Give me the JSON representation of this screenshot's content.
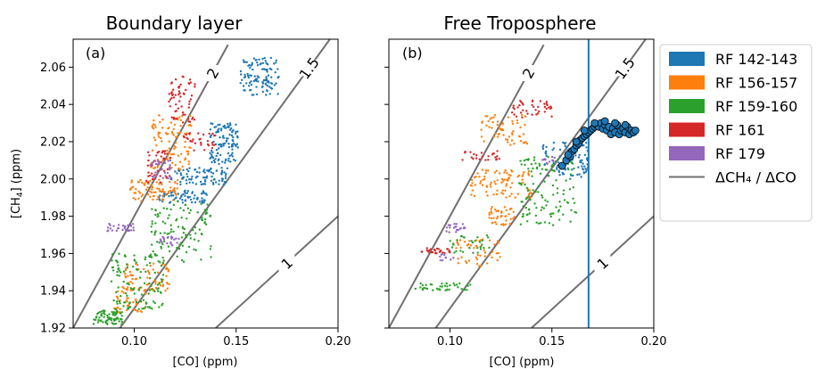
{
  "chart_data": [
    {
      "type": "scatter",
      "title": "Boundary layer",
      "panel_label": "(a)",
      "xlabel": "[CO] (ppm)",
      "ylabel": "[CH",
      "ylabel_sub": "4",
      "ylabel_tail": "] (ppm)",
      "xlim": [
        0.07,
        0.2
      ],
      "ylim": [
        1.92,
        2.075
      ],
      "xticks": [
        0.1,
        0.15,
        0.2
      ],
      "xtick_labels": [
        "0.10",
        "0.15",
        "0.20"
      ],
      "yticks": [
        1.92,
        1.94,
        1.96,
        1.98,
        2.0,
        2.02,
        2.04,
        2.06
      ],
      "ytick_labels": [
        "1.92",
        "1.94",
        "1.96",
        "1.98",
        "2.00",
        "2.02",
        "2.04",
        "2.06"
      ],
      "ratio_lines": [
        {
          "slope": 2,
          "label": "2",
          "x0": 0.07,
          "y0": 1.92,
          "x1": 0.146,
          "y1": 2.072
        },
        {
          "slope": 1.5,
          "label": "1.5",
          "x0": 0.093,
          "y0": 1.92,
          "x1": 0.196,
          "y1": 2.075
        },
        {
          "slope": 1,
          "label": "1",
          "x0": 0.14,
          "y0": 1.92,
          "x1": 0.2,
          "y1": 1.98
        }
      ],
      "clusters": [
        {
          "series": "RF 142-143",
          "x": [
            0.152,
            0.171
          ],
          "y": [
            2.045,
            2.065
          ],
          "n": 110
        },
        {
          "series": "RF 142-143",
          "x": [
            0.137,
            0.151
          ],
          "y": [
            2.008,
            2.03
          ],
          "n": 110
        },
        {
          "series": "RF 142-143",
          "x": [
            0.118,
            0.146
          ],
          "y": [
            1.997,
            2.006
          ],
          "n": 90
        },
        {
          "series": "RF 142-143",
          "x": [
            0.112,
            0.136
          ],
          "y": [
            1.987,
            1.994
          ],
          "n": 70
        },
        {
          "series": "RF 156-157",
          "x": [
            0.108,
            0.128
          ],
          "y": [
            2.005,
            2.035
          ],
          "n": 100
        },
        {
          "series": "RF 156-157",
          "x": [
            0.098,
            0.122
          ],
          "y": [
            1.988,
            2.0
          ],
          "n": 80
        },
        {
          "series": "RF 156-157",
          "x": [
            0.095,
            0.118
          ],
          "y": [
            1.94,
            1.955
          ],
          "n": 70
        },
        {
          "series": "RF 156-157",
          "x": [
            0.09,
            0.106
          ],
          "y": [
            1.928,
            1.942
          ],
          "n": 50
        },
        {
          "series": "RF 159-160",
          "x": [
            0.08,
            0.094
          ],
          "y": [
            1.922,
            1.93
          ],
          "n": 80
        },
        {
          "series": "RF 159-160",
          "x": [
            0.088,
            0.115
          ],
          "y": [
            1.93,
            1.96
          ],
          "n": 120
        },
        {
          "series": "RF 159-160",
          "x": [
            0.108,
            0.138
          ],
          "y": [
            1.955,
            1.988
          ],
          "n": 110
        },
        {
          "series": "RF 161",
          "x": [
            0.117,
            0.13
          ],
          "y": [
            2.03,
            2.055
          ],
          "n": 60
        },
        {
          "series": "RF 161",
          "x": [
            0.106,
            0.118
          ],
          "y": [
            1.998,
            2.015
          ],
          "n": 40
        },
        {
          "series": "RF 161",
          "x": [
            0.124,
            0.14
          ],
          "y": [
            2.015,
            2.025
          ],
          "n": 30
        },
        {
          "series": "RF 179",
          "x": [
            0.086,
            0.1
          ],
          "y": [
            1.972,
            1.976
          ],
          "n": 30
        },
        {
          "series": "RF 179",
          "x": [
            0.108,
            0.118
          ],
          "y": [
            2.0,
            2.01
          ],
          "n": 30
        },
        {
          "series": "RF 179",
          "x": [
            0.112,
            0.124
          ],
          "y": [
            1.964,
            1.969
          ],
          "n": 20
        }
      ]
    },
    {
      "type": "scatter",
      "title": "Free Troposphere",
      "panel_label": "(b)",
      "xlabel": "[CO] (ppm)",
      "xlim": [
        0.07,
        0.2
      ],
      "ylim": [
        1.92,
        2.075
      ],
      "xticks": [
        0.1,
        0.15,
        0.2
      ],
      "xtick_labels": [
        "0.10",
        "0.15",
        "0.20"
      ],
      "yticks": [
        1.92,
        1.94,
        1.96,
        1.98,
        2.0,
        2.02,
        2.04,
        2.06
      ],
      "vertical_line_x": 0.168,
      "ratio_lines": [
        {
          "slope": 2,
          "label": "2",
          "x0": 0.07,
          "y0": 1.92,
          "x1": 0.146,
          "y1": 2.072
        },
        {
          "slope": 1.5,
          "label": "1.5",
          "x0": 0.093,
          "y0": 1.92,
          "x1": 0.196,
          "y1": 2.075
        },
        {
          "series_note": "",
          "slope": 1,
          "label": "1",
          "x0": 0.14,
          "y0": 1.92,
          "x1": 0.2,
          "y1": 1.98
        }
      ],
      "clusters": [
        {
          "series": "RF 142-143",
          "x": [
            0.145,
            0.168
          ],
          "y": [
            2.0,
            2.02
          ],
          "n": 90
        },
        {
          "series": "RF 156-157",
          "x": [
            0.115,
            0.138
          ],
          "y": [
            2.018,
            2.035
          ],
          "n": 60
        },
        {
          "series": "RF 156-157",
          "x": [
            0.11,
            0.14
          ],
          "y": [
            1.99,
            2.005
          ],
          "n": 90
        },
        {
          "series": "RF 156-157",
          "x": [
            0.118,
            0.132
          ],
          "y": [
            1.975,
            1.985
          ],
          "n": 40
        },
        {
          "series": "RF 156-157",
          "x": [
            0.103,
            0.125
          ],
          "y": [
            1.953,
            1.968
          ],
          "n": 50
        },
        {
          "series": "RF 159-160",
          "x": [
            0.133,
            0.162
          ],
          "y": [
            1.975,
            2.012
          ],
          "n": 120
        },
        {
          "series": "RF 159-160",
          "x": [
            0.1,
            0.12
          ],
          "y": [
            1.96,
            1.97
          ],
          "n": 30
        },
        {
          "series": "RF 159-160",
          "x": [
            0.083,
            0.11
          ],
          "y": [
            1.94,
            1.944
          ],
          "n": 40
        },
        {
          "series": "RF 161",
          "x": [
            0.13,
            0.15
          ],
          "y": [
            2.033,
            2.042
          ],
          "n": 40
        },
        {
          "series": "RF 161",
          "x": [
            0.105,
            0.125
          ],
          "y": [
            2.01,
            2.015
          ],
          "n": 25
        },
        {
          "series": "RF 161",
          "x": [
            0.085,
            0.1
          ],
          "y": [
            1.96,
            1.963
          ],
          "n": 25
        },
        {
          "series": "RF 179",
          "x": [
            0.098,
            0.108
          ],
          "y": [
            1.97,
            1.976
          ],
          "n": 20
        },
        {
          "series": "RF 179",
          "x": [
            0.145,
            0.152
          ],
          "y": [
            2.008,
            2.012
          ],
          "n": 10
        },
        {
          "series": "RF 179",
          "x": [
            0.095,
            0.102
          ],
          "y": [
            1.956,
            1.96
          ],
          "n": 10
        }
      ],
      "highlight_points": {
        "series": "RF 142-143",
        "x": [
          0.155,
          0.157,
          0.159,
          0.16,
          0.161,
          0.162,
          0.163,
          0.164,
          0.165,
          0.166,
          0.167,
          0.168,
          0.169,
          0.17,
          0.171,
          0.172,
          0.173,
          0.174,
          0.175,
          0.176,
          0.177,
          0.178,
          0.179,
          0.18,
          0.181,
          0.182,
          0.183,
          0.184,
          0.185,
          0.186,
          0.187,
          0.188,
          0.189,
          0.19,
          0.191,
          0.158,
          0.162,
          0.166,
          0.171,
          0.176,
          0.181,
          0.186
        ],
        "y": [
          2.007,
          2.01,
          2.012,
          2.015,
          2.016,
          2.018,
          2.019,
          2.021,
          2.022,
          2.023,
          2.024,
          2.025,
          2.026,
          2.027,
          2.028,
          2.029,
          2.028,
          2.03,
          2.027,
          2.029,
          2.026,
          2.028,
          2.024,
          2.027,
          2.025,
          2.029,
          2.024,
          2.026,
          2.027,
          2.025,
          2.028,
          2.024,
          2.026,
          2.025,
          2.026,
          2.013,
          2.02,
          2.026,
          2.03,
          2.031,
          2.03,
          2.029
        ]
      }
    }
  ],
  "legend": {
    "placement": "right",
    "items": [
      {
        "label": "RF 142-143",
        "color": "#1f77b4"
      },
      {
        "label": "RF 156-157",
        "color": "#ff7f0e"
      },
      {
        "label": "RF 159-160",
        "color": "#2ca02c"
      },
      {
        "label": "RF 161",
        "color": "#d62728"
      },
      {
        "label": "RF 179",
        "color": "#9467bd"
      }
    ],
    "line_item": {
      "label": "ΔCH₄ / ΔCO",
      "color": "#707070"
    }
  }
}
